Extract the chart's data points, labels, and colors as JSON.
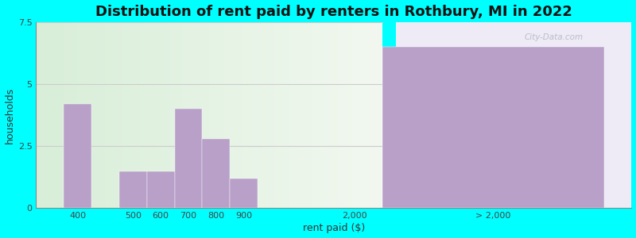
{
  "title": "Distribution of rent paid by renters in Rothbury, MI in 2022",
  "xlabel": "rent paid ($)",
  "ylabel": "households",
  "bar_color": "#b8a0c8",
  "background_color": "#00ffff",
  "ylim": [
    0,
    7.5
  ],
  "yticks": [
    0,
    2.5,
    5,
    7.5
  ],
  "title_fontsize": 13,
  "axis_fontsize": 9,
  "watermark": "City-Data.com",
  "categories": [
    "400",
    "500",
    "600",
    "700",
    "800",
    "900",
    "2,000",
    "> 2,000"
  ],
  "values": [
    4.2,
    1.5,
    1.5,
    4.0,
    2.8,
    1.2,
    0.0,
    6.5
  ],
  "bar_positions": [
    1,
    3,
    4,
    5,
    6,
    7,
    11,
    16
  ],
  "bar_width": 1.0,
  "big_bar_width": 8.0,
  "xtick_positions": [
    1,
    3,
    4,
    5,
    6,
    7,
    11,
    16
  ],
  "xtick_labels": [
    "400",
    "500",
    "600",
    "700",
    "800",
    "900",
    "2,000",
    "> 2,000"
  ],
  "xlim": [
    -0.5,
    21
  ],
  "grid_color": "#dddddd",
  "bg_left_color": "#e8f5e2",
  "bg_right_color": "#ede8f5"
}
